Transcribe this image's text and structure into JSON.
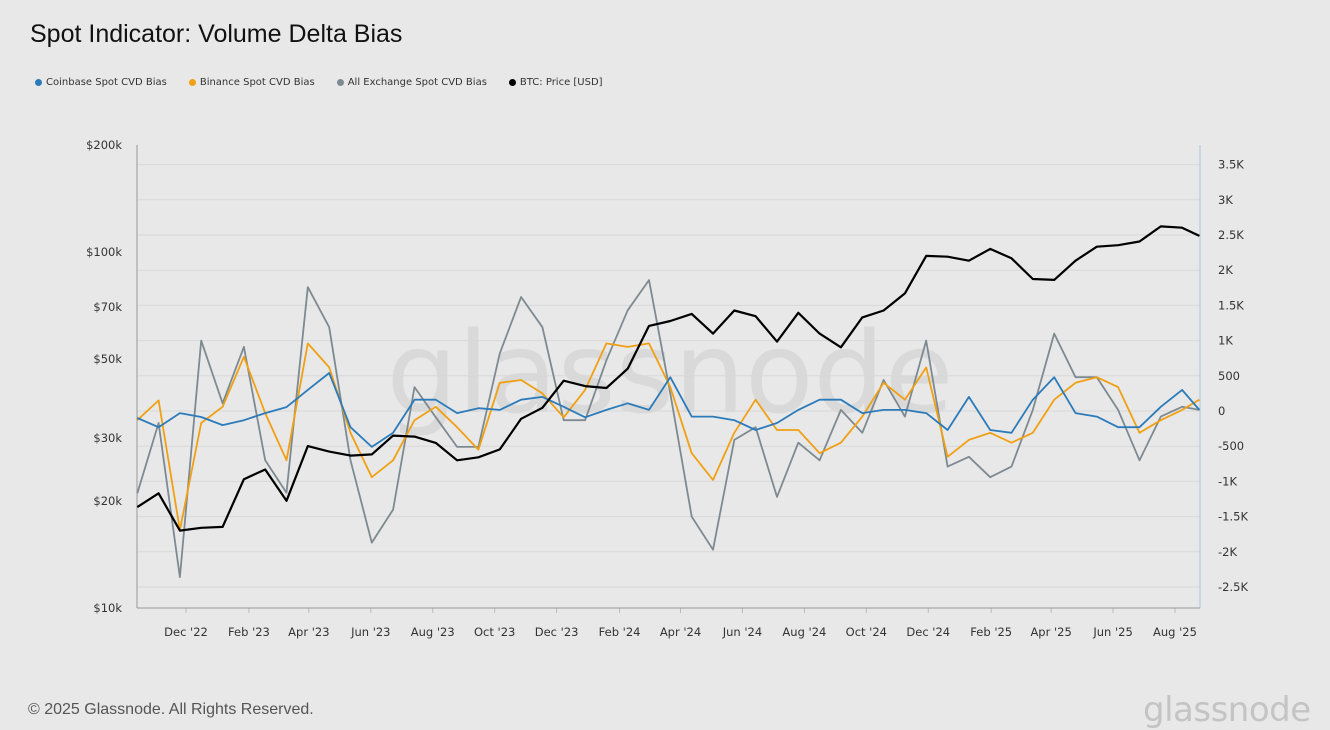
{
  "title": "Spot Indicator: Volume Delta Bias",
  "footer": "© 2025 Glassnode. All Rights Reserved.",
  "logo_text": "glassnode",
  "watermark": "glassnode",
  "chart_data": {
    "type": "line",
    "title": "Spot Indicator: Volume Delta Bias",
    "legend_position": "top-left",
    "grid": true,
    "x": [
      "2022-10-14",
      "2022-11-04",
      "2022-11-25",
      "2022-12-16",
      "2023-01-06",
      "2023-01-27",
      "2023-02-17",
      "2023-03-10",
      "2023-03-31",
      "2023-04-21",
      "2023-05-12",
      "2023-06-02",
      "2023-06-23",
      "2023-07-14",
      "2023-08-04",
      "2023-08-25",
      "2023-09-15",
      "2023-10-06",
      "2023-10-27",
      "2023-11-17",
      "2023-12-08",
      "2023-12-29",
      "2024-01-19",
      "2024-02-09",
      "2024-03-01",
      "2024-03-22",
      "2024-04-12",
      "2024-05-03",
      "2024-05-24",
      "2024-06-14",
      "2024-07-05",
      "2024-07-26",
      "2024-08-16",
      "2024-09-06",
      "2024-09-27",
      "2024-10-18",
      "2024-11-08",
      "2024-11-29",
      "2024-12-20",
      "2025-01-10",
      "2025-01-31",
      "2025-02-21",
      "2025-03-14",
      "2025-04-04",
      "2025-04-25",
      "2025-05-16",
      "2025-06-06",
      "2025-06-27",
      "2025-07-18",
      "2025-08-08",
      "2025-08-25"
    ],
    "x_ticks": [
      "Dec '22",
      "Feb '23",
      "Apr '23",
      "Jun '23",
      "Aug '23",
      "Oct '23",
      "Dec '23",
      "Feb '24",
      "Apr '24",
      "Jun '24",
      "Aug '24",
      "Oct '24",
      "Dec '24",
      "Feb '25",
      "Apr '25",
      "Jun '25",
      "Aug '25"
    ],
    "x_tick_dates": [
      "2022-12-01",
      "2023-02-01",
      "2023-04-01",
      "2023-06-01",
      "2023-08-01",
      "2023-10-01",
      "2023-12-01",
      "2024-02-01",
      "2024-04-01",
      "2024-06-01",
      "2024-08-01",
      "2024-10-01",
      "2024-12-01",
      "2025-02-01",
      "2025-04-01",
      "2025-06-01",
      "2025-08-01"
    ],
    "y_left": {
      "scale": "log",
      "range": [
        10000,
        200000
      ],
      "ticks": [
        200000,
        100000,
        70000,
        50000,
        30000,
        20000,
        10000
      ],
      "tick_labels": [
        "$200k",
        "$100k",
        "$70k",
        "$50k",
        "$30k",
        "$20k",
        "$10k"
      ]
    },
    "y_right": {
      "scale": "linear",
      "range": [
        -2500,
        3500
      ],
      "ticks": [
        3500,
        3000,
        2500,
        2000,
        1500,
        1000,
        500,
        0,
        -500,
        -1000,
        -1500,
        -2000,
        -2500
      ],
      "tick_labels": [
        "3.5K",
        "3K",
        "2.5K",
        "2K",
        "1.5K",
        "1K",
        "500",
        "0",
        "-500",
        "-1K",
        "-1.5K",
        "-2K",
        "-2.5K"
      ]
    },
    "series": [
      {
        "name": "Coinbase Spot CVD Bias",
        "color": "#2b7bba",
        "axis": "right",
        "values": [
          -100,
          -230,
          -30,
          -85,
          -200,
          -130,
          -30,
          55,
          300,
          540,
          -230,
          -510,
          -310,
          160,
          160,
          -30,
          40,
          15,
          160,
          200,
          60,
          -90,
          15,
          110,
          15,
          480,
          -80,
          -80,
          -130,
          -270,
          -170,
          15,
          160,
          160,
          -30,
          15,
          15,
          -30,
          -270,
          200,
          -270,
          -310,
          160,
          480,
          -30,
          -80,
          -230,
          -230,
          60,
          300,
          15
        ]
      },
      {
        "name": "Binance Spot CVD Bias",
        "color": "#f0a012",
        "axis": "right",
        "values": [
          -130,
          150,
          -1690,
          -170,
          60,
          770,
          -30,
          -700,
          960,
          620,
          -310,
          -940,
          -700,
          -130,
          60,
          -230,
          -550,
          400,
          440,
          250,
          -90,
          300,
          960,
          910,
          960,
          340,
          -600,
          -980,
          -310,
          160,
          -270,
          -270,
          -600,
          -450,
          -80,
          400,
          160,
          620,
          -650,
          -410,
          -310,
          -450,
          -310,
          160,
          400,
          480,
          340,
          -310,
          -130,
          15,
          160
        ]
      },
      {
        "name": "All Exchange Spot CVD Bias",
        "color": "#7d8a91",
        "axis": "right",
        "values": [
          -1170,
          -170,
          -2360,
          1000,
          110,
          910,
          -700,
          -1160,
          1760,
          1190,
          -700,
          -1870,
          -1400,
          340,
          -90,
          -510,
          -510,
          820,
          1620,
          1190,
          -130,
          -130,
          720,
          1430,
          1860,
          250,
          -1500,
          -1970,
          -410,
          -230,
          -1220,
          -450,
          -700,
          15,
          -310,
          440,
          -80,
          1000,
          -790,
          -650,
          -940,
          -790,
          15,
          1100,
          480,
          480,
          15,
          -700,
          -80,
          60,
          15
        ]
      },
      {
        "name": "BTC: Price [USD]",
        "color": "#000000",
        "axis": "left",
        "values": [
          19200,
          21000,
          16500,
          16800,
          16900,
          23000,
          24500,
          20000,
          28500,
          27500,
          26800,
          27000,
          30500,
          30300,
          29100,
          26000,
          26500,
          27900,
          34000,
          36500,
          43500,
          42000,
          41500,
          47000,
          62000,
          64000,
          67000,
          59000,
          68500,
          66000,
          56000,
          67500,
          59000,
          54000,
          65500,
          68500,
          76500,
          97500,
          97000,
          94500,
          102000,
          96000,
          84000,
          83500,
          94500,
          103500,
          104500,
          107000,
          118000,
          117000,
          111000
        ]
      }
    ]
  }
}
